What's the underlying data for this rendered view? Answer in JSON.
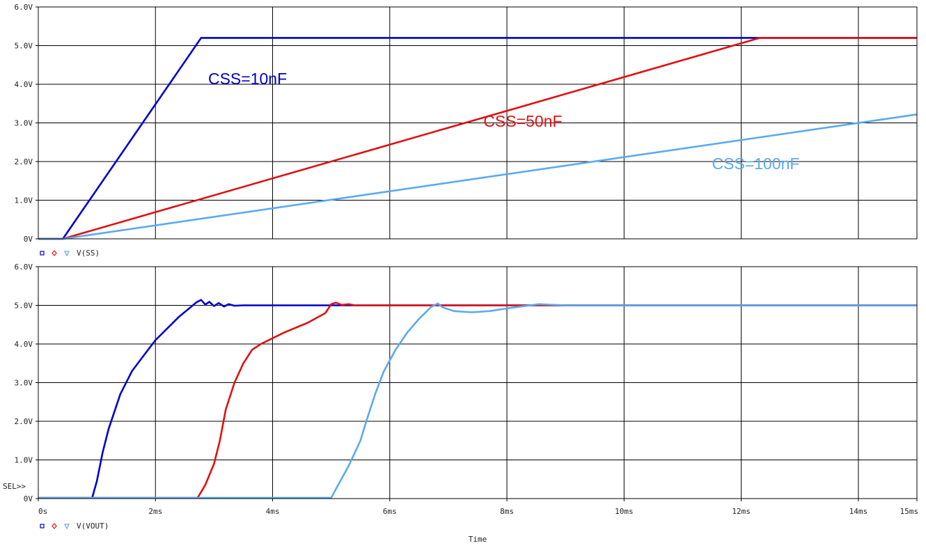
{
  "chart_data": [
    {
      "type": "line",
      "title": "",
      "xlabel": "",
      "ylabel": "",
      "xlim": [
        0,
        15
      ],
      "ylim": [
        0,
        6
      ],
      "grid": true,
      "y_ticks": [
        "0V",
        "1.0V",
        "2.0V",
        "3.0V",
        "4.0V",
        "5.0V",
        "6.0V"
      ],
      "legend": {
        "markers": [
          "square",
          "diamond",
          "triangle"
        ],
        "label": "V(SS)"
      },
      "series": [
        {
          "name": "CSS=10nF",
          "color": "#0000cc",
          "points": [
            [
              0,
              0
            ],
            [
              0.42,
              0
            ],
            [
              2.78,
              5.2
            ],
            [
              15,
              5.2
            ]
          ]
        },
        {
          "name": "CSS=50nF",
          "color": "#e01010",
          "points": [
            [
              0,
              0
            ],
            [
              0.42,
              0
            ],
            [
              12.32,
              5.2
            ],
            [
              15,
              5.2
            ]
          ]
        },
        {
          "name": "CSS=100nF",
          "color": "#5aaaf0",
          "points": [
            [
              0,
              0
            ],
            [
              0.42,
              0
            ],
            [
              15,
              3.22
            ]
          ]
        }
      ],
      "annotations": [
        {
          "text": "CSS=10nF",
          "x": 2.9,
          "y": 4.0,
          "color": "#0000cc"
        },
        {
          "text": "CSS=50nF",
          "x": 7.6,
          "y": 2.9,
          "color": "#e01010"
        },
        {
          "text": "CSS=100nF",
          "x": 11.5,
          "y": 1.8,
          "color": "#5aaaf0"
        }
      ]
    },
    {
      "type": "line",
      "title": "",
      "xlabel": "Time",
      "ylabel": "",
      "xlim": [
        0,
        15
      ],
      "ylim": [
        0,
        6
      ],
      "grid": true,
      "y_ticks": [
        "0V",
        "1.0V",
        "2.0V",
        "3.0V",
        "4.0V",
        "5.0V",
        "6.0V"
      ],
      "x_ticks": [
        {
          "label": "0s",
          "value": 0
        },
        {
          "label": "2ms",
          "value": 2
        },
        {
          "label": "4ms",
          "value": 4
        },
        {
          "label": "6ms",
          "value": 6
        },
        {
          "label": "8ms",
          "value": 8
        },
        {
          "label": "10ms",
          "value": 10
        },
        {
          "label": "12ms",
          "value": 12
        },
        {
          "label": "14ms",
          "value": 14
        },
        {
          "label": "15ms",
          "value": 15
        }
      ],
      "sel_marker": "SEL>>",
      "legend": {
        "markers": [
          "square",
          "diamond",
          "triangle"
        ],
        "label": "V(VOUT)"
      },
      "series": [
        {
          "name": "CSS=10nF",
          "color": "#0000cc",
          "points": [
            [
              0,
              0.02
            ],
            [
              0.92,
              0.02
            ],
            [
              1.0,
              0.45
            ],
            [
              1.1,
              1.2
            ],
            [
              1.2,
              1.8
            ],
            [
              1.4,
              2.7
            ],
            [
              1.6,
              3.3
            ],
            [
              1.8,
              3.7
            ],
            [
              2.0,
              4.1
            ],
            [
              2.2,
              4.4
            ],
            [
              2.4,
              4.7
            ],
            [
              2.6,
              4.95
            ],
            [
              2.7,
              5.08
            ],
            [
              2.78,
              5.14
            ],
            [
              2.85,
              5.02
            ],
            [
              2.92,
              5.09
            ],
            [
              3.0,
              4.98
            ],
            [
              3.08,
              5.06
            ],
            [
              3.17,
              4.97
            ],
            [
              3.25,
              5.03
            ],
            [
              3.35,
              4.99
            ],
            [
              3.5,
              5.0
            ],
            [
              15,
              5.0
            ]
          ]
        },
        {
          "name": "CSS=50nF",
          "color": "#e01010",
          "points": [
            [
              0,
              0.02
            ],
            [
              2.72,
              0.02
            ],
            [
              2.85,
              0.35
            ],
            [
              3.0,
              0.9
            ],
            [
              3.1,
              1.5
            ],
            [
              3.2,
              2.3
            ],
            [
              3.35,
              3.0
            ],
            [
              3.5,
              3.5
            ],
            [
              3.65,
              3.85
            ],
            [
              3.8,
              4.0
            ],
            [
              4.2,
              4.3
            ],
            [
              4.6,
              4.55
            ],
            [
              4.9,
              4.8
            ],
            [
              5.0,
              5.03
            ],
            [
              5.08,
              5.07
            ],
            [
              5.18,
              5.01
            ],
            [
              5.3,
              5.03
            ],
            [
              5.4,
              5.0
            ],
            [
              15,
              5.0
            ]
          ]
        },
        {
          "name": "CSS=100nF",
          "color": "#5aaaf0",
          "points": [
            [
              0,
              0.02
            ],
            [
              5.0,
              0.02
            ],
            [
              5.1,
              0.3
            ],
            [
              5.3,
              0.85
            ],
            [
              5.5,
              1.5
            ],
            [
              5.6,
              2.0
            ],
            [
              5.75,
              2.7
            ],
            [
              5.9,
              3.3
            ],
            [
              6.1,
              3.85
            ],
            [
              6.3,
              4.3
            ],
            [
              6.5,
              4.65
            ],
            [
              6.7,
              4.95
            ],
            [
              6.82,
              5.05
            ],
            [
              6.9,
              4.95
            ],
            [
              7.1,
              4.85
            ],
            [
              7.4,
              4.82
            ],
            [
              7.7,
              4.85
            ],
            [
              8.0,
              4.92
            ],
            [
              8.3,
              4.98
            ],
            [
              8.55,
              5.03
            ],
            [
              8.7,
              5.02
            ],
            [
              9.0,
              5.0
            ],
            [
              15,
              5.0
            ]
          ]
        }
      ]
    }
  ]
}
